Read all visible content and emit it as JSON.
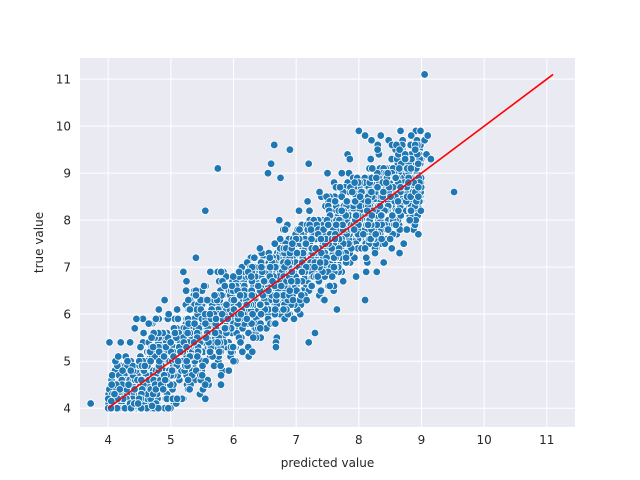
{
  "chart_data": {
    "type": "scatter",
    "title": "",
    "xlabel": "predicted value",
    "ylabel": "true value",
    "xlim": [
      3.55,
      11.45
    ],
    "ylim": [
      3.6,
      11.45
    ],
    "xticks": [
      4,
      5,
      6,
      7,
      8,
      9,
      10,
      11
    ],
    "yticks": [
      4,
      5,
      6,
      7,
      8,
      9,
      10,
      11
    ],
    "grid": true,
    "background_color": "#eaeaf2",
    "point_color": "#1f77b4",
    "line_color": "#ff0000",
    "reference_line": {
      "x": [
        4.0,
        11.1
      ],
      "y": [
        4.0,
        11.1
      ]
    },
    "noise_seed": 7,
    "noise_std": 0.48,
    "bulk_points": 2400,
    "points": [
      {
        "x": 3.72,
        "y": 4.1
      },
      {
        "x": 4.0,
        "y": 4.2
      },
      {
        "x": 4.05,
        "y": 4.15
      },
      {
        "x": 4.1,
        "y": 4.3
      },
      {
        "x": 4.02,
        "y": 5.4
      },
      {
        "x": 4.2,
        "y": 5.4
      },
      {
        "x": 4.35,
        "y": 5.4
      },
      {
        "x": 4.45,
        "y": 5.9
      },
      {
        "x": 4.9,
        "y": 6.3
      },
      {
        "x": 5.2,
        "y": 6.9
      },
      {
        "x": 5.4,
        "y": 7.2
      },
      {
        "x": 5.55,
        "y": 8.2
      },
      {
        "x": 5.75,
        "y": 9.1
      },
      {
        "x": 5.8,
        "y": 4.5
      },
      {
        "x": 5.5,
        "y": 4.7
      },
      {
        "x": 5.3,
        "y": 4.4
      },
      {
        "x": 5.55,
        "y": 4.2
      },
      {
        "x": 5.1,
        "y": 4.2
      },
      {
        "x": 4.8,
        "y": 4.0
      },
      {
        "x": 4.7,
        "y": 4.05
      },
      {
        "x": 6.0,
        "y": 5.0
      },
      {
        "x": 6.3,
        "y": 5.2
      },
      {
        "x": 6.55,
        "y": 9.0
      },
      {
        "x": 6.6,
        "y": 9.2
      },
      {
        "x": 6.65,
        "y": 9.6
      },
      {
        "x": 6.9,
        "y": 9.5
      },
      {
        "x": 6.75,
        "y": 8.9
      },
      {
        "x": 7.2,
        "y": 9.2
      },
      {
        "x": 7.5,
        "y": 9.0
      },
      {
        "x": 8.0,
        "y": 9.9
      },
      {
        "x": 8.1,
        "y": 9.8
      },
      {
        "x": 8.35,
        "y": 9.8
      },
      {
        "x": 8.6,
        "y": 9.6
      },
      {
        "x": 8.65,
        "y": 9.5
      },
      {
        "x": 8.9,
        "y": 9.5
      },
      {
        "x": 9.05,
        "y": 9.7
      },
      {
        "x": 9.1,
        "y": 9.8
      },
      {
        "x": 9.08,
        "y": 9.4
      },
      {
        "x": 9.15,
        "y": 9.3
      },
      {
        "x": 8.95,
        "y": 8.7
      },
      {
        "x": 8.95,
        "y": 8.5
      },
      {
        "x": 8.95,
        "y": 7.7
      },
      {
        "x": 8.65,
        "y": 7.3
      },
      {
        "x": 9.52,
        "y": 8.6
      },
      {
        "x": 9.05,
        "y": 11.1
      },
      {
        "x": 8.1,
        "y": 6.3
      },
      {
        "x": 7.65,
        "y": 6.1
      },
      {
        "x": 7.3,
        "y": 5.6
      },
      {
        "x": 7.2,
        "y": 5.4
      },
      {
        "x": 8.5,
        "y": 7.6
      },
      {
        "x": 7.7,
        "y": 8.7
      },
      {
        "x": 8.3,
        "y": 9.5
      }
    ]
  }
}
